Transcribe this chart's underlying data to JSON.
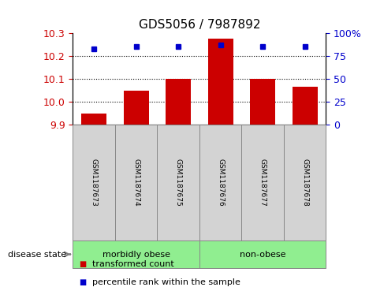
{
  "title": "GDS5056 / 7987892",
  "samples": [
    "GSM1187673",
    "GSM1187674",
    "GSM1187675",
    "GSM1187676",
    "GSM1187677",
    "GSM1187678"
  ],
  "bar_values": [
    9.95,
    10.05,
    10.1,
    10.275,
    10.1,
    10.065
  ],
  "bar_bottom": 9.9,
  "percentile_values": [
    83,
    85,
    85,
    87,
    85,
    85
  ],
  "ylim_left": [
    9.9,
    10.3
  ],
  "ylim_right": [
    0,
    100
  ],
  "yticks_left": [
    9.9,
    10.0,
    10.1,
    10.2,
    10.3
  ],
  "yticks_right": [
    0,
    25,
    50,
    75,
    100
  ],
  "ytick_labels_right": [
    "0",
    "25",
    "50",
    "75",
    "100%"
  ],
  "bar_color": "#cc0000",
  "dot_color": "#0000cc",
  "groups": [
    {
      "label": "morbidly obese",
      "indices": [
        0,
        1,
        2
      ],
      "color": "#90ee90"
    },
    {
      "label": "non-obese",
      "indices": [
        3,
        4,
        5
      ],
      "color": "#90ee90"
    }
  ],
  "label_box_color": "#d3d3d3",
  "legend_items": [
    {
      "label": "transformed count",
      "color": "#cc0000"
    },
    {
      "label": "percentile rank within the sample",
      "color": "#0000cc"
    }
  ],
  "title_fontsize": 11,
  "tick_fontsize": 9,
  "sample_fontsize": 6.5,
  "group_fontsize": 8,
  "legend_fontsize": 8
}
